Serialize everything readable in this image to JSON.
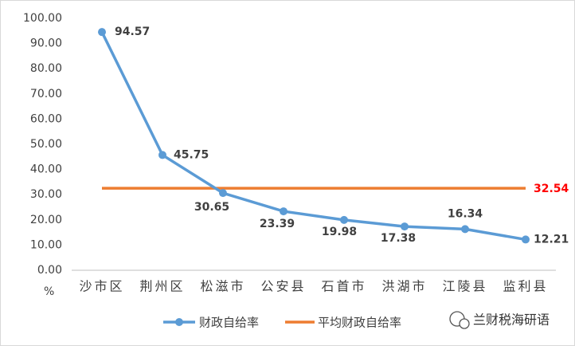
{
  "chart_data": {
    "type": "line",
    "categories": [
      "沙市区",
      "荆州区",
      "松滋市",
      "公安县",
      "石首市",
      "洪湖市",
      "江陵县",
      "监利县"
    ],
    "series": [
      {
        "name": "财政自给率",
        "color": "#5b9bd5",
        "values": [
          94.57,
          45.75,
          30.65,
          23.39,
          19.98,
          17.38,
          16.34,
          12.21
        ]
      },
      {
        "name": "平均财政自给率",
        "color": "#ed7d31",
        "values": [
          32.54,
          32.54,
          32.54,
          32.54,
          32.54,
          32.54,
          32.54,
          32.54
        ],
        "label_color": "#ff0000"
      }
    ],
    "ylim": [
      0,
      100
    ],
    "yticks": [
      {
        "value": 0,
        "label": "0.00"
      },
      {
        "value": 10,
        "label": "10.00"
      },
      {
        "value": 20,
        "label": "20.00"
      },
      {
        "value": 30,
        "label": "30.00"
      },
      {
        "value": 40,
        "label": "40.00"
      },
      {
        "value": 50,
        "label": "50.00"
      },
      {
        "value": 60,
        "label": "60.00"
      },
      {
        "value": 70,
        "label": "70.00"
      },
      {
        "value": 80,
        "label": "80.00"
      },
      {
        "value": 90,
        "label": "90.00"
      },
      {
        "value": 100,
        "label": "100.00"
      }
    ],
    "y_unit": "%",
    "grid": false,
    "legend": "bottom",
    "watermark": "兰财税海研语"
  }
}
